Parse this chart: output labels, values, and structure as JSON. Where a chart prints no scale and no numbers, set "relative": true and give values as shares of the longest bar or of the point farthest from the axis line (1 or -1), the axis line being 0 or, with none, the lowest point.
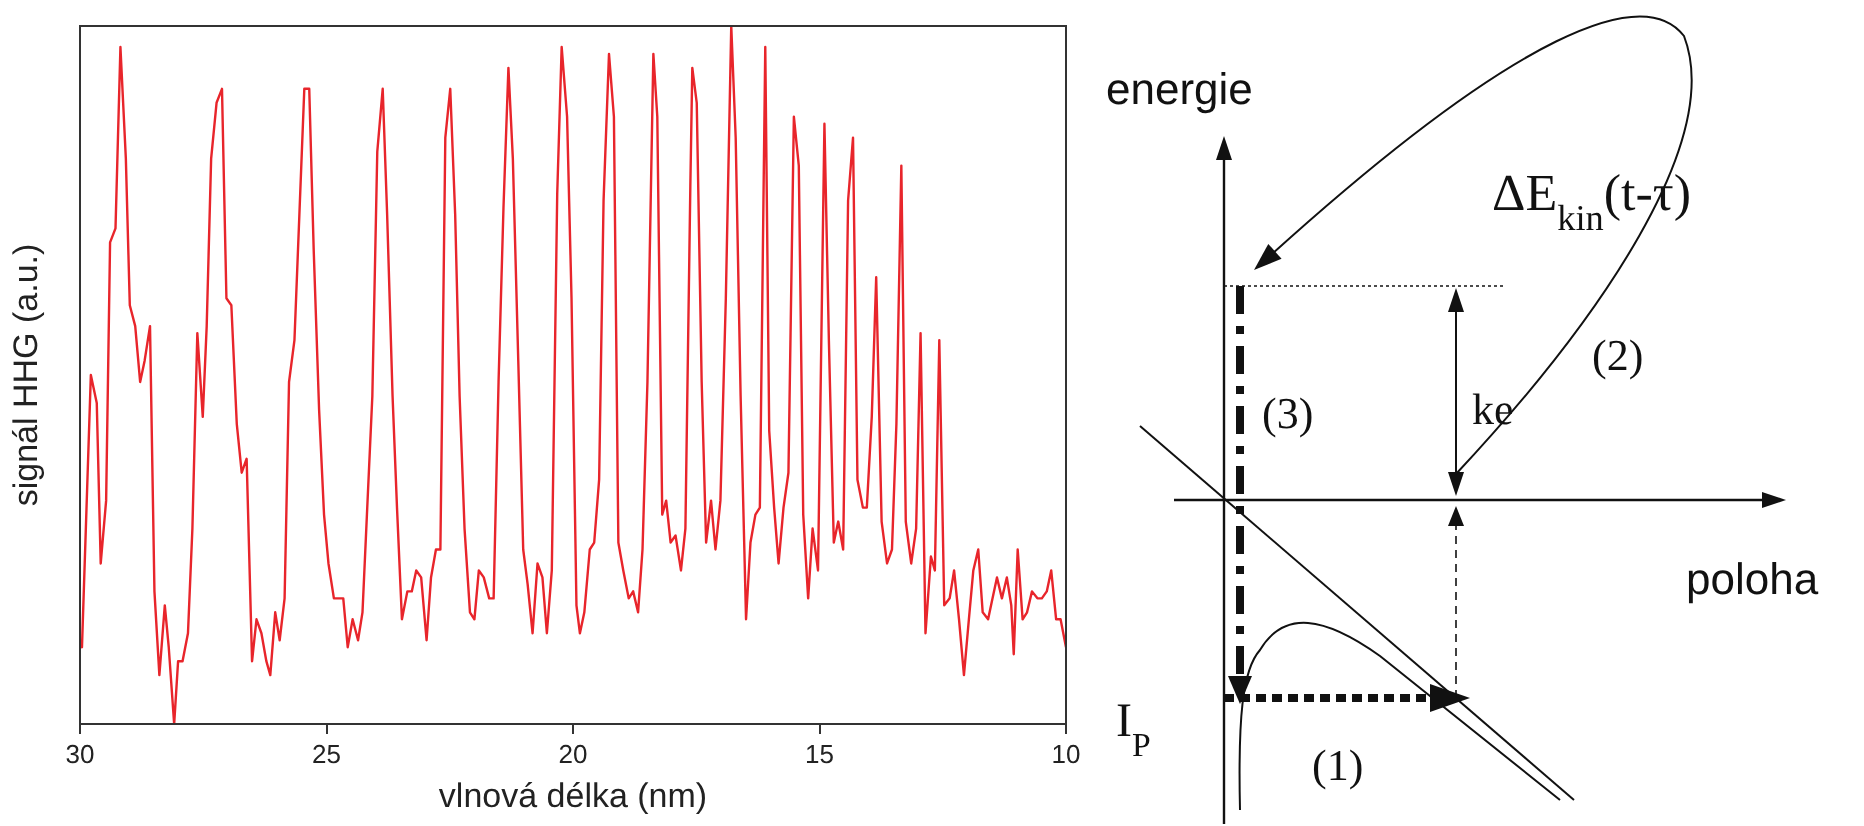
{
  "chart_data": {
    "type": "line",
    "xlabel": "vlnová délka (nm)",
    "ylabel": "signál HHG (a.u.)",
    "relative": true,
    "xlim": [
      30,
      10
    ],
    "xticks": [
      30,
      25,
      20,
      15,
      10
    ],
    "marker": "none",
    "annotations": [
      "energie",
      "poloha",
      "ΔE$_{kin}$(t-τ)",
      "ke",
      "(1)",
      "(2)",
      "(3)",
      "I$_{P}$"
    ],
    "x": [
      30.0,
      29.96,
      29.78,
      29.66,
      29.58,
      29.47,
      29.39,
      29.28,
      29.18,
      29.07,
      28.99,
      28.88,
      28.78,
      28.69,
      28.58,
      28.49,
      28.39,
      28.28,
      28.2,
      28.09,
      28.01,
      27.92,
      27.81,
      27.72,
      27.62,
      27.51,
      27.43,
      27.34,
      27.23,
      27.12,
      27.03,
      26.93,
      26.82,
      26.72,
      26.62,
      26.51,
      26.42,
      26.32,
      26.22,
      26.14,
      26.04,
      25.95,
      25.85,
      25.76,
      25.65,
      25.55,
      25.45,
      25.35,
      25.26,
      25.15,
      25.05,
      24.96,
      24.85,
      24.76,
      24.66,
      24.57,
      24.47,
      24.36,
      24.27,
      24.18,
      24.07,
      23.97,
      23.86,
      23.77,
      23.66,
      23.57,
      23.47,
      23.36,
      23.27,
      23.18,
      23.08,
      22.97,
      22.88,
      22.78,
      22.69,
      22.59,
      22.49,
      22.39,
      22.3,
      22.2,
      22.09,
      22.0,
      21.91,
      21.81,
      21.7,
      21.61,
      21.51,
      21.41,
      21.31,
      21.22,
      21.11,
      21.01,
      20.92,
      20.82,
      20.72,
      20.62,
      20.53,
      20.43,
      20.32,
      20.23,
      20.12,
      20.03,
      19.93,
      19.86,
      19.77,
      19.66,
      19.57,
      19.47,
      19.38,
      19.27,
      19.17,
      19.08,
      18.98,
      18.87,
      18.78,
      18.68,
      18.59,
      18.49,
      18.37,
      18.29,
      18.19,
      18.11,
      18.02,
      17.92,
      17.81,
      17.72,
      17.62,
      17.58,
      17.49,
      17.39,
      17.3,
      17.2,
      17.11,
      17.01,
      16.9,
      16.79,
      16.7,
      16.6,
      16.49,
      16.4,
      16.3,
      16.21,
      16.1,
      16.02,
      15.92,
      15.83,
      15.73,
      15.63,
      15.52,
      15.42,
      15.33,
      15.23,
      15.14,
      15.03,
      14.9,
      14.81,
      14.71,
      14.62,
      14.52,
      14.42,
      14.32,
      14.23,
      14.12,
      14.04,
      13.94,
      13.85,
      13.74,
      13.63,
      13.53,
      13.44,
      13.34,
      13.25,
      13.14,
      13.04,
      12.95,
      12.85,
      12.74,
      12.66,
      12.57,
      12.47,
      12.36,
      12.27,
      12.17,
      12.07,
      11.97,
      11.88,
      11.78,
      11.69,
      11.58,
      11.49,
      11.4,
      11.3,
      11.2,
      11.11,
      11.06,
      10.98,
      10.88,
      10.79,
      10.69,
      10.58,
      10.49,
      10.39,
      10.3,
      10.2,
      10.11,
      10.0
    ],
    "series": [
      {
        "color": "#e8252b",
        "values": [
          0.12,
          0.11,
          0.5,
          0.46,
          0.23,
          0.32,
          0.69,
          0.71,
          0.97,
          0.81,
          0.6,
          0.57,
          0.49,
          0.52,
          0.57,
          0.19,
          0.07,
          0.17,
          0.11,
          0.0,
          0.09,
          0.09,
          0.13,
          0.28,
          0.56,
          0.44,
          0.57,
          0.81,
          0.89,
          0.91,
          0.61,
          0.6,
          0.43,
          0.36,
          0.38,
          0.09,
          0.15,
          0.13,
          0.09,
          0.07,
          0.16,
          0.12,
          0.18,
          0.49,
          0.55,
          0.73,
          0.91,
          0.91,
          0.68,
          0.45,
          0.3,
          0.23,
          0.18,
          0.18,
          0.18,
          0.11,
          0.15,
          0.12,
          0.16,
          0.3,
          0.47,
          0.82,
          0.91,
          0.73,
          0.47,
          0.31,
          0.15,
          0.19,
          0.19,
          0.22,
          0.21,
          0.12,
          0.21,
          0.25,
          0.25,
          0.84,
          0.91,
          0.73,
          0.47,
          0.28,
          0.16,
          0.15,
          0.22,
          0.21,
          0.18,
          0.18,
          0.49,
          0.74,
          0.94,
          0.81,
          0.52,
          0.25,
          0.2,
          0.13,
          0.23,
          0.21,
          0.13,
          0.22,
          0.76,
          0.97,
          0.87,
          0.61,
          0.17,
          0.13,
          0.16,
          0.25,
          0.26,
          0.35,
          0.75,
          0.96,
          0.87,
          0.26,
          0.22,
          0.18,
          0.19,
          0.16,
          0.25,
          0.49,
          0.96,
          0.87,
          0.3,
          0.32,
          0.26,
          0.27,
          0.22,
          0.28,
          0.77,
          0.94,
          0.89,
          0.49,
          0.26,
          0.32,
          0.25,
          0.32,
          0.61,
          1.0,
          0.84,
          0.47,
          0.15,
          0.26,
          0.3,
          0.31,
          0.97,
          0.42,
          0.31,
          0.23,
          0.31,
          0.36,
          0.87,
          0.8,
          0.3,
          0.18,
          0.28,
          0.22,
          0.86,
          0.55,
          0.26,
          0.29,
          0.25,
          0.75,
          0.84,
          0.35,
          0.31,
          0.31,
          0.44,
          0.64,
          0.29,
          0.23,
          0.25,
          0.43,
          0.8,
          0.29,
          0.23,
          0.28,
          0.56,
          0.13,
          0.24,
          0.22,
          0.55,
          0.17,
          0.18,
          0.22,
          0.15,
          0.07,
          0.15,
          0.22,
          0.25,
          0.16,
          0.15,
          0.18,
          0.21,
          0.18,
          0.21,
          0.17,
          0.1,
          0.25,
          0.15,
          0.16,
          0.19,
          0.18,
          0.18,
          0.19,
          0.22,
          0.15,
          0.15,
          0.11
        ]
      }
    ]
  }
}
